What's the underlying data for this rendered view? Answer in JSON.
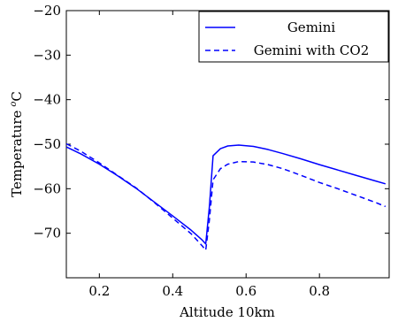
{
  "chart_data": {
    "type": "line",
    "xlabel": "Altitude 10km",
    "ylabel": "Temperature",
    "ylabel_unit": "C",
    "ylabel_superscript": "o",
    "xlim": [
      0.11,
      0.99
    ],
    "ylim": [
      -80,
      -20
    ],
    "xticks": [
      0.2,
      0.4,
      0.6,
      0.8
    ],
    "xtick_labels": [
      "0.2",
      "0.4",
      "0.6",
      "0.8"
    ],
    "yticks": [
      -70,
      -60,
      -50,
      -40,
      -30,
      -20
    ],
    "ytick_labels": [
      "−70",
      "−60",
      "−50",
      "−40",
      "−30",
      "−20"
    ],
    "grid": false,
    "legend_position": "top-right",
    "line_color": "#0000ff",
    "series": [
      {
        "name": "Gemini",
        "style": "solid",
        "x": [
          0.11,
          0.15,
          0.2,
          0.25,
          0.3,
          0.35,
          0.4,
          0.45,
          0.48,
          0.49,
          0.5,
          0.51,
          0.53,
          0.55,
          0.58,
          0.62,
          0.66,
          0.7,
          0.75,
          0.8,
          0.85,
          0.9,
          0.95,
          0.98
        ],
        "y": [
          -50.6,
          -52.2,
          -54.5,
          -57.1,
          -59.9,
          -63.0,
          -66.1,
          -69.3,
          -71.5,
          -72.4,
          -64.0,
          -52.6,
          -51.0,
          -50.4,
          -50.2,
          -50.5,
          -51.2,
          -52.1,
          -53.3,
          -54.6,
          -55.8,
          -57.0,
          -58.2,
          -58.9
        ]
      },
      {
        "name": "Gemini with CO2",
        "style": "dashed",
        "x": [
          0.11,
          0.15,
          0.2,
          0.25,
          0.3,
          0.35,
          0.4,
          0.45,
          0.48,
          0.49,
          0.5,
          0.51,
          0.53,
          0.55,
          0.58,
          0.62,
          0.66,
          0.7,
          0.75,
          0.8,
          0.85,
          0.9,
          0.95,
          0.98
        ],
        "y": [
          -49.9,
          -51.6,
          -54.2,
          -57.0,
          -59.8,
          -63.1,
          -66.6,
          -70.1,
          -72.8,
          -73.8,
          -67.0,
          -58.0,
          -55.5,
          -54.5,
          -53.9,
          -54.0,
          -54.6,
          -55.5,
          -57.0,
          -58.6,
          -60.0,
          -61.5,
          -63.0,
          -64.0
        ]
      }
    ]
  }
}
